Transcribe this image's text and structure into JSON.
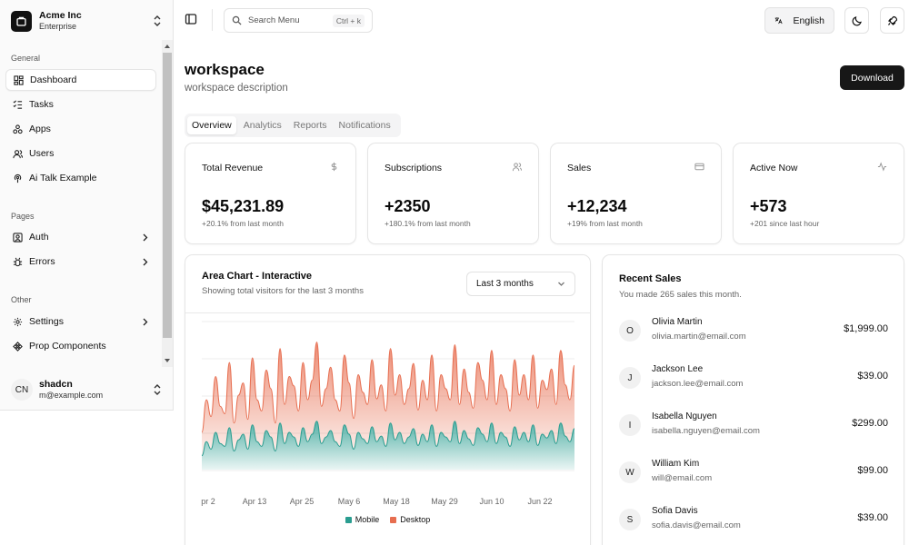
{
  "team": {
    "name": "Acme Inc",
    "plan": "Enterprise"
  },
  "sidebar": {
    "groups": [
      {
        "label": "General",
        "items": [
          {
            "label": "Dashboard",
            "icon": "layout-dashboard-icon",
            "active": true
          },
          {
            "label": "Tasks",
            "icon": "list-checks-icon"
          },
          {
            "label": "Apps",
            "icon": "package-icon"
          },
          {
            "label": "Users",
            "icon": "users-icon"
          },
          {
            "label": "Ai Talk Example",
            "icon": "podcast-icon"
          }
        ]
      },
      {
        "label": "Pages",
        "items": [
          {
            "label": "Auth",
            "icon": "user-square-icon",
            "has_children": true
          },
          {
            "label": "Errors",
            "icon": "bug-icon",
            "has_children": true
          }
        ]
      },
      {
        "label": "Other",
        "items": [
          {
            "label": "Settings",
            "icon": "settings-icon",
            "has_children": true
          },
          {
            "label": "Prop Components",
            "icon": "component-icon"
          }
        ]
      }
    ]
  },
  "user": {
    "initials": "CN",
    "name": "shadcn",
    "email": "m@example.com"
  },
  "header": {
    "search_placeholder": "Search Menu",
    "search_shortcut": "Ctrl + k",
    "language": "English"
  },
  "page": {
    "title": "workspace",
    "description": "workspace description",
    "download_label": "Download",
    "tabs": [
      "Overview",
      "Analytics",
      "Reports",
      "Notifications"
    ],
    "active_tab": "Overview"
  },
  "stats": [
    {
      "title": "Total Revenue",
      "value": "$45,231.89",
      "sub": "+20.1% from last month",
      "icon": "dollar-sign-icon"
    },
    {
      "title": "Subscriptions",
      "value": "+2350",
      "sub": "+180.1% from last month",
      "icon": "users-icon"
    },
    {
      "title": "Sales",
      "value": "+12,234",
      "sub": "+19% from last month",
      "icon": "credit-card-icon"
    },
    {
      "title": "Active Now",
      "value": "+573",
      "sub": "+201 since last hour",
      "icon": "activity-icon"
    }
  ],
  "chart": {
    "title": "Area Chart - Interactive",
    "description": "Showing total visitors for the last 3 months",
    "range": "Last 3 months"
  },
  "chart_data": {
    "type": "area",
    "stacked": true,
    "grid": true,
    "x_ticks": [
      "pr 2",
      "Apr 13",
      "Apr 25",
      "May 6",
      "May 18",
      "May 29",
      "Jun 10",
      "Jun 22"
    ],
    "series": [
      {
        "name": "Mobile",
        "color": "#2a9d90",
        "values": [
          15,
          30,
          22,
          40,
          28,
          25,
          45,
          20,
          32,
          38,
          22,
          48,
          30,
          25,
          42,
          35,
          20,
          50,
          28,
          40,
          35,
          25,
          45,
          30,
          38,
          52,
          28,
          35,
          42,
          30,
          25,
          48,
          38,
          22,
          40,
          33,
          28,
          46,
          30,
          36,
          25,
          50,
          32,
          40,
          28,
          35,
          44,
          26,
          38,
          30,
          48,
          25,
          40,
          35,
          30,
          52,
          28,
          42,
          33,
          26,
          45,
          38,
          30,
          50,
          28,
          40,
          35,
          25,
          46,
          32,
          40,
          30,
          48,
          26,
          38,
          34,
          42,
          28,
          50,
          36,
          30,
          44
        ]
      },
      {
        "name": "Desktop",
        "color": "#e76e50",
        "values": [
          25,
          45,
          35,
          60,
          40,
          35,
          70,
          30,
          48,
          55,
          32,
          72,
          45,
          38,
          65,
          52,
          30,
          80,
          42,
          60,
          55,
          38,
          70,
          45,
          58,
          85,
          40,
          52,
          68,
          45,
          38,
          75,
          55,
          33,
          62,
          50,
          42,
          72,
          46,
          55,
          38,
          80,
          48,
          62,
          42,
          52,
          70,
          38,
          58,
          45,
          75,
          38,
          62,
          52,
          45,
          82,
          42,
          66,
          50,
          40,
          70,
          58,
          45,
          78,
          42,
          62,
          52,
          38,
          72,
          48,
          62,
          45,
          75,
          40,
          58,
          52,
          66,
          42,
          78,
          55,
          45,
          68
        ]
      }
    ]
  },
  "sales": {
    "title": "Recent Sales",
    "description": "You made 265 sales this month.",
    "rows": [
      {
        "initial": "O",
        "name": "Olivia Martin",
        "email": "olivia.martin@email.com",
        "amount": "$1,999.00"
      },
      {
        "initial": "J",
        "name": "Jackson Lee",
        "email": "jackson.lee@email.com",
        "amount": "$39.00"
      },
      {
        "initial": "I",
        "name": "Isabella Nguyen",
        "email": "isabella.nguyen@email.com",
        "amount": "$299.00"
      },
      {
        "initial": "W",
        "name": "William Kim",
        "email": "will@email.com",
        "amount": "$99.00"
      },
      {
        "initial": "S",
        "name": "Sofia Davis",
        "email": "sofia.davis@email.com",
        "amount": "$39.00"
      }
    ]
  }
}
